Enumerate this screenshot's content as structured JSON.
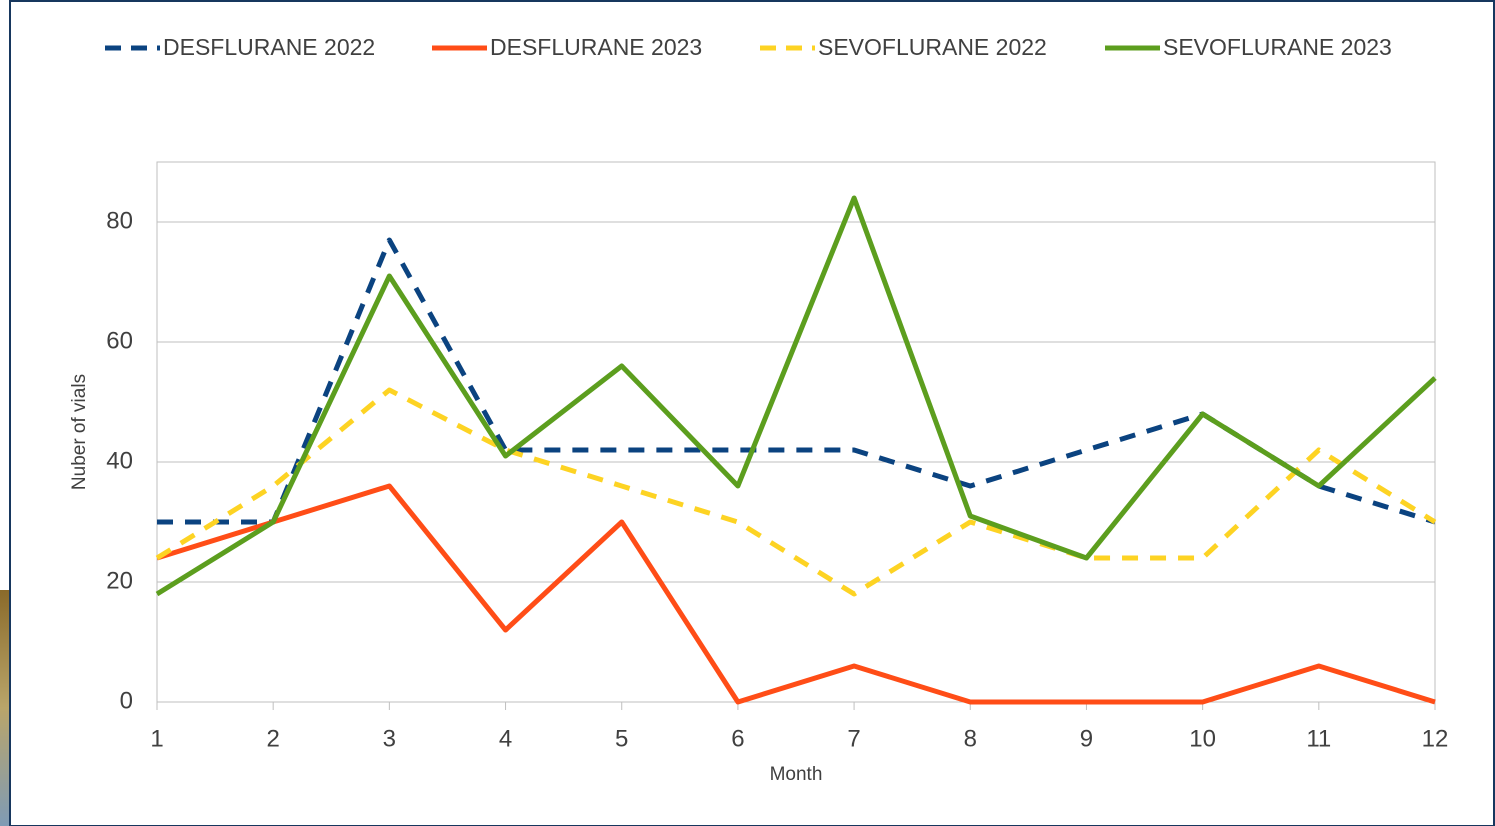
{
  "chart_data": {
    "type": "line",
    "x": [
      1,
      2,
      3,
      4,
      5,
      6,
      7,
      8,
      9,
      10,
      11,
      12
    ],
    "xlim": [
      1,
      12
    ],
    "xticks": [
      1,
      2,
      3,
      4,
      5,
      6,
      7,
      8,
      9,
      10,
      11,
      12
    ],
    "ylim": [
      0,
      90
    ],
    "yticks": [
      0,
      20,
      40,
      60,
      80
    ],
    "x_label": "Month",
    "y_label": "Nuber of vials",
    "grid": true,
    "legend": "top",
    "series": [
      {
        "name": "DESFLURANE 2022",
        "color": "#0b4380",
        "dashed": true,
        "values": [
          30,
          30,
          77,
          42,
          42,
          42,
          42,
          36,
          42,
          48,
          36,
          30
        ]
      },
      {
        "name": "DESFLURANE 2023",
        "color": "#ff4d17",
        "dashed": false,
        "values": [
          24,
          30,
          36,
          12,
          30,
          0,
          6,
          0,
          0,
          0,
          6,
          0
        ]
      },
      {
        "name": "SEVOFLURANE 2022",
        "color": "#fdd323",
        "dashed": true,
        "values": [
          24,
          36,
          52,
          42,
          36,
          30,
          18,
          30,
          24,
          24,
          42,
          30
        ]
      },
      {
        "name": "SEVOFLURANE 2023",
        "color": "#5c9e1e",
        "dashed": false,
        "values": [
          18,
          30,
          71,
          41,
          56,
          36,
          84,
          31,
          24,
          48,
          36,
          54
        ]
      }
    ]
  }
}
